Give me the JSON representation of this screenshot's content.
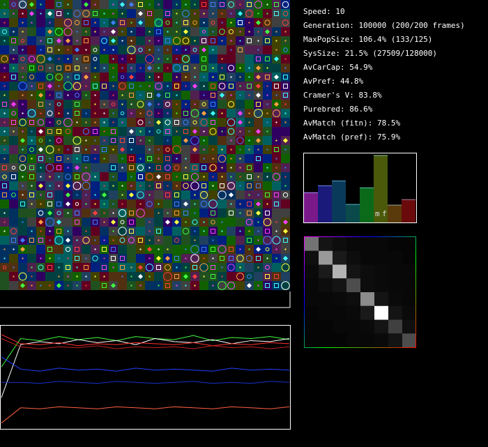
{
  "stats": [
    "Speed: 10",
    "Generation: 100000 (200/200 frames)",
    "MaxPopSize: 106.4% (133/125)",
    "SysSize: 21.5% (27509/128000)",
    "AvCarCap: 54.9%",
    "AvPref: 44.8%",
    "Cramer's V: 83.8%",
    "Purebred: 86.6%",
    "AvMatch (fitn): 78.5%",
    "AvMatch (pref): 75.9%"
  ],
  "bar_chart": {
    "values": [
      44,
      54,
      61,
      27,
      51,
      98,
      26,
      34
    ],
    "colors": [
      "#7a1a8a",
      "#1a1a7a",
      "#0a3a5a",
      "#0a4a4a",
      "#0a6a1a",
      "#4a5a0a",
      "#5a3a0a",
      "#6a0a0a"
    ],
    "labels": [
      "m",
      "f"
    ]
  },
  "matrix": {
    "values": [
      [
        45,
        8,
        5,
        3,
        3,
        3,
        2,
        2
      ],
      [
        6,
        60,
        10,
        5,
        3,
        3,
        3,
        2
      ],
      [
        4,
        10,
        70,
        8,
        5,
        4,
        3,
        3
      ],
      [
        3,
        5,
        8,
        30,
        5,
        4,
        3,
        3
      ],
      [
        3,
        3,
        4,
        5,
        55,
        8,
        4,
        3
      ],
      [
        2,
        3,
        3,
        4,
        10,
        100,
        8,
        4
      ],
      [
        2,
        2,
        3,
        3,
        4,
        8,
        25,
        6
      ],
      [
        2,
        2,
        2,
        3,
        3,
        4,
        8,
        30
      ]
    ]
  },
  "line_plot": {
    "ylim": [
      0,
      1
    ],
    "series": [
      {
        "color": "#40ff40",
        "values": [
          0.6,
          0.88,
          0.86,
          0.9,
          0.87,
          0.89,
          0.86,
          0.9,
          0.88,
          0.87,
          0.91,
          0.86,
          0.89,
          0.88,
          0.9,
          0.87
        ]
      },
      {
        "color": "#ffffff",
        "values": [
          0.3,
          0.82,
          0.85,
          0.83,
          0.87,
          0.84,
          0.86,
          0.82,
          0.88,
          0.85,
          0.84,
          0.87,
          0.83,
          0.86,
          0.85,
          0.88
        ]
      },
      {
        "color": "#ff3030",
        "values": [
          0.92,
          0.83,
          0.82,
          0.84,
          0.81,
          0.83,
          0.82,
          0.84,
          0.83,
          0.82,
          0.84,
          0.81,
          0.83,
          0.82,
          0.84,
          0.83
        ]
      },
      {
        "color": "#c02020",
        "values": [
          0.88,
          0.8,
          0.78,
          0.8,
          0.79,
          0.81,
          0.78,
          0.8,
          0.79,
          0.8,
          0.78,
          0.81,
          0.79,
          0.8,
          0.78,
          0.8
        ]
      },
      {
        "color": "#2040ff",
        "values": [
          0.7,
          0.58,
          0.56,
          0.59,
          0.57,
          0.58,
          0.56,
          0.59,
          0.57,
          0.58,
          0.57,
          0.56,
          0.59,
          0.57,
          0.58,
          0.57
        ]
      },
      {
        "color": "#1830d0",
        "values": [
          0.45,
          0.45,
          0.44,
          0.46,
          0.45,
          0.44,
          0.46,
          0.45,
          0.44,
          0.45,
          0.46,
          0.44,
          0.45,
          0.44,
          0.46,
          0.45
        ]
      },
      {
        "color": "#ff6040",
        "values": [
          0.05,
          0.2,
          0.19,
          0.21,
          0.2,
          0.19,
          0.21,
          0.2,
          0.19,
          0.21,
          0.2,
          0.19,
          0.21,
          0.2,
          0.19,
          0.21
        ]
      }
    ]
  }
}
